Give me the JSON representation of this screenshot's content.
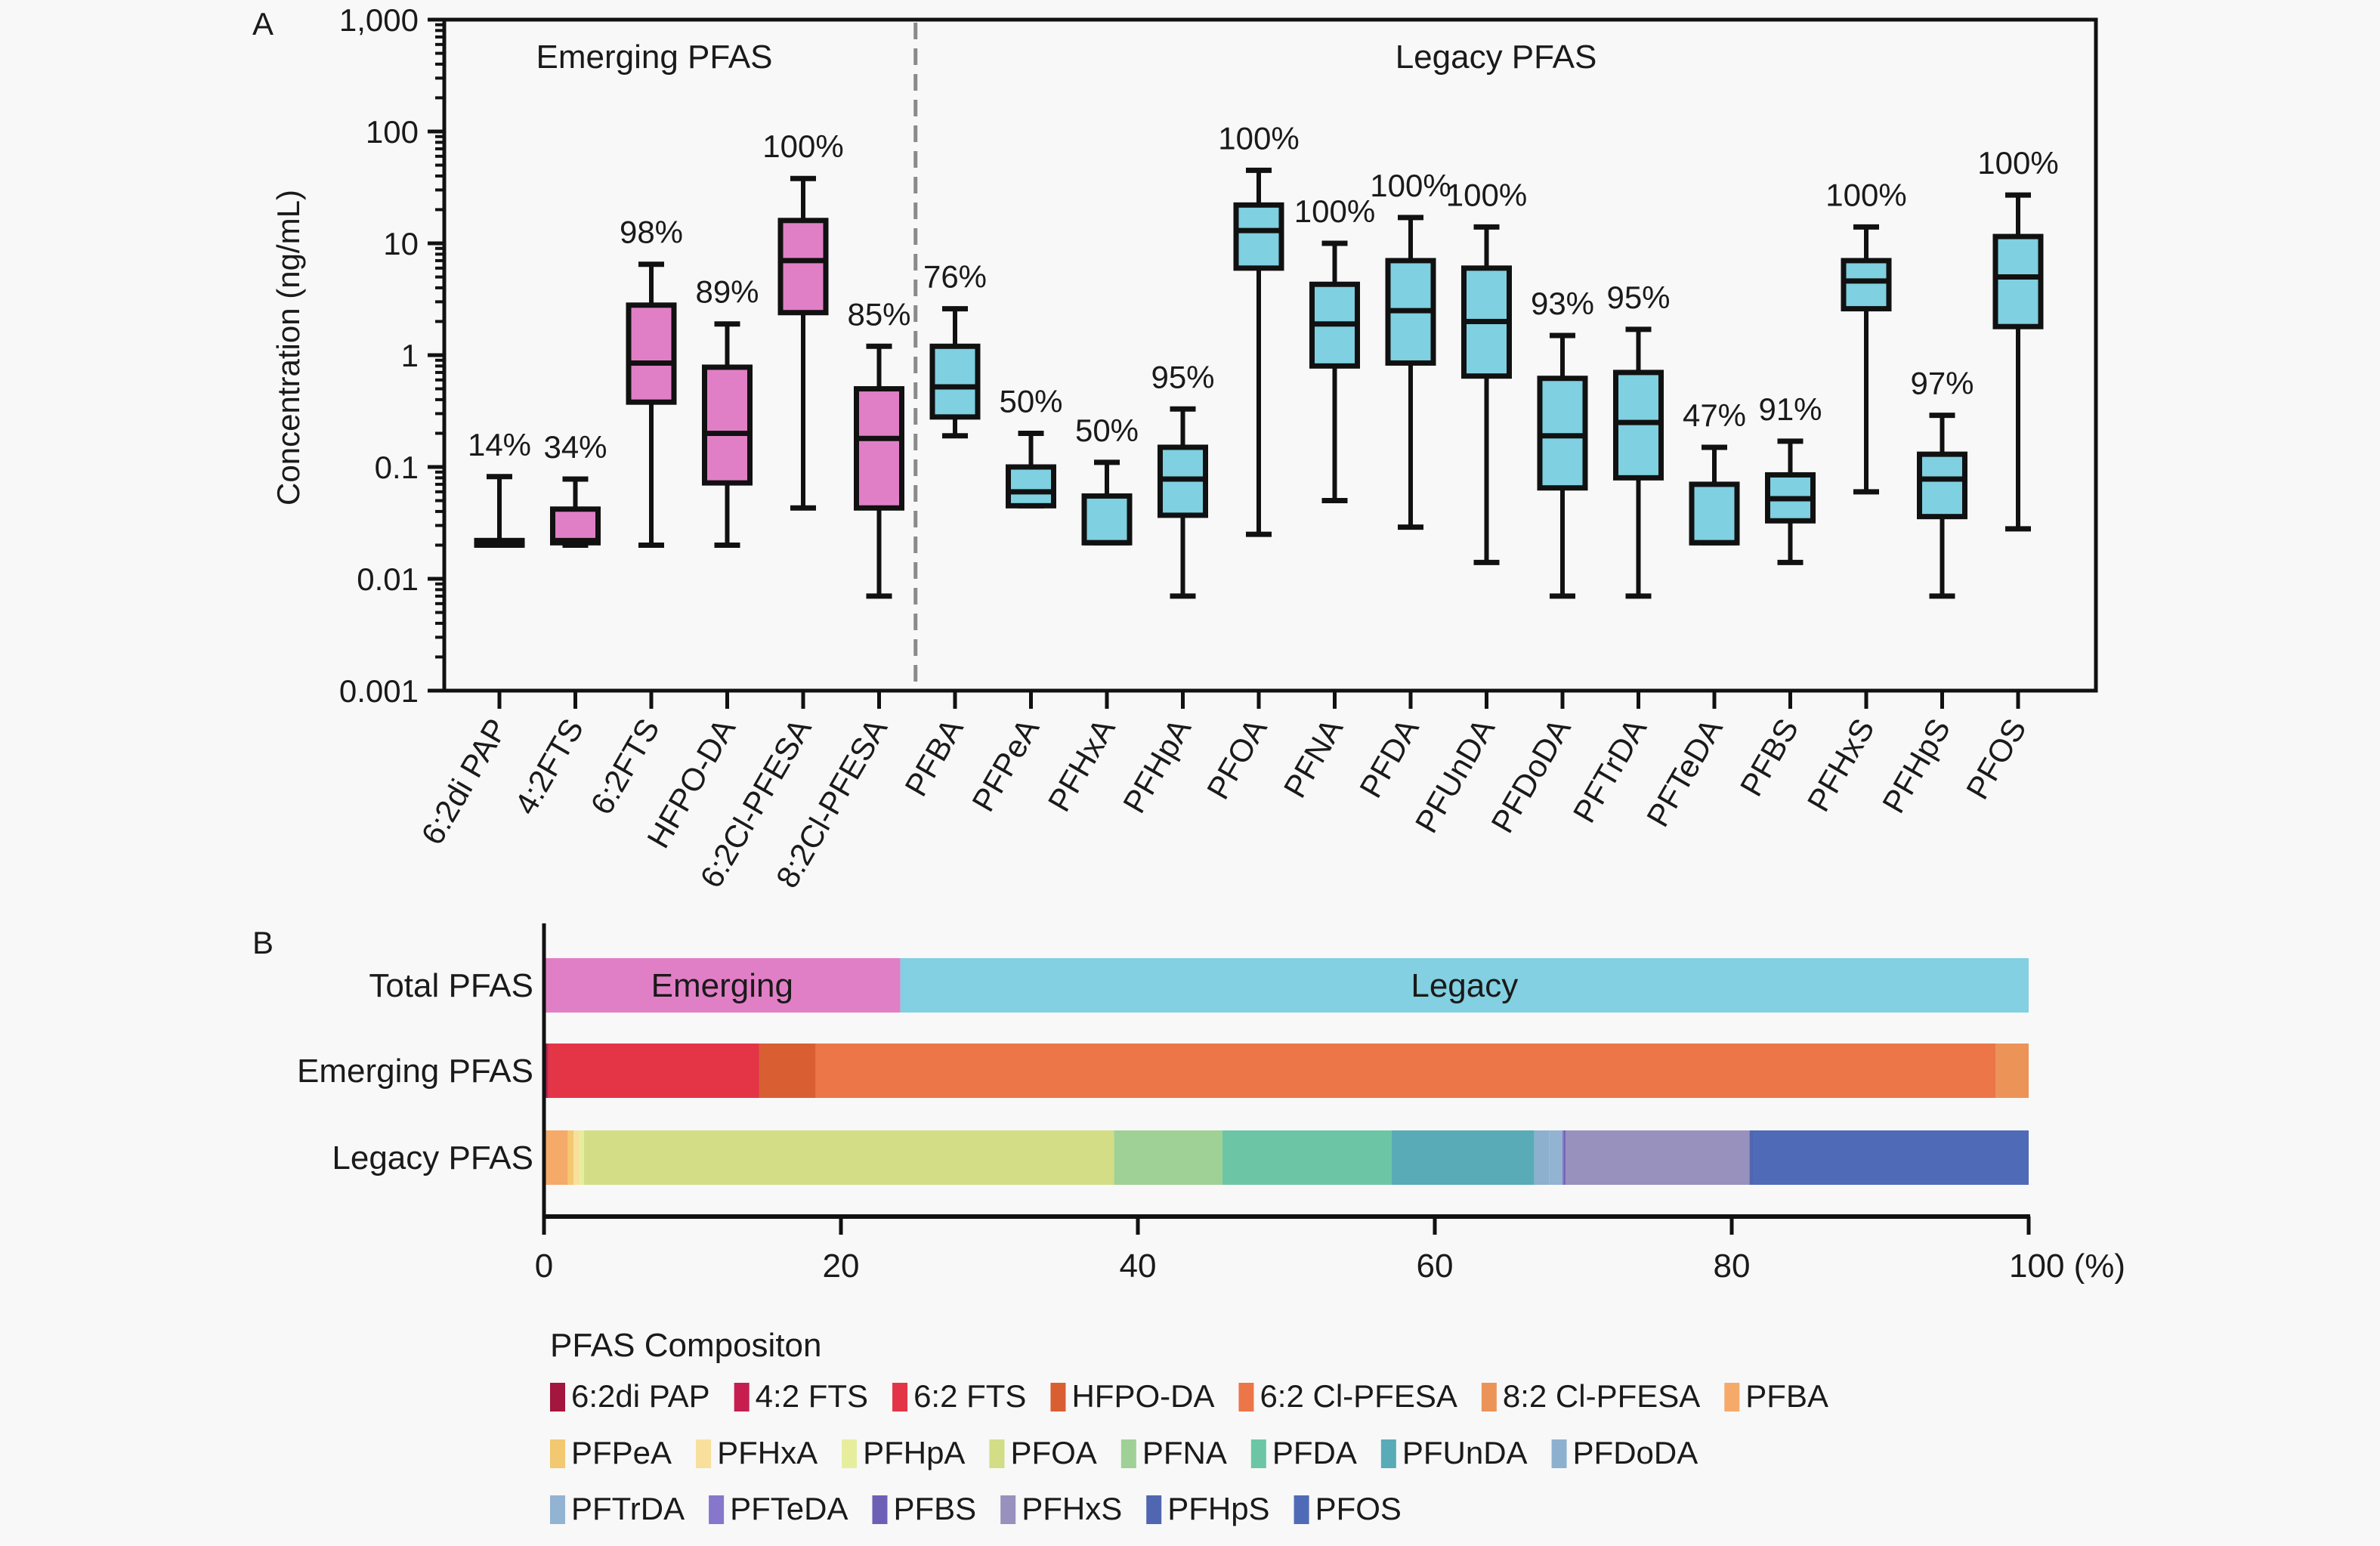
{
  "chart_data": [
    {
      "panel": "A",
      "type": "box",
      "ylabel": "Concentration (ng/mL)",
      "yscale": "log",
      "ylim": [
        0.001,
        1000
      ],
      "yticks": [
        {
          "value": 1000,
          "label": "1,000"
        },
        {
          "value": 100,
          "label": "100"
        },
        {
          "value": 10,
          "label": "10"
        },
        {
          "value": 1,
          "label": "1"
        },
        {
          "value": 0.1,
          "label": "0.1"
        },
        {
          "value": 0.01,
          "label": "0.01"
        },
        {
          "value": 0.001,
          "label": "0.001"
        }
      ],
      "groups": [
        {
          "label": "Emerging PFAS",
          "color": "#e17fc6",
          "count": 6
        },
        {
          "label": "Legacy PFAS",
          "color": "#7fd0e0",
          "count": 15
        }
      ],
      "series": [
        {
          "name": "6:2di PAP",
          "group": "Emerging PFAS",
          "detection": "14%",
          "min": 0.02,
          "q1": 0.02,
          "median": 0.02,
          "q3": 0.022,
          "max": 0.082
        },
        {
          "name": "4:2FTS",
          "group": "Emerging PFAS",
          "detection": "34%",
          "min": 0.02,
          "q1": 0.021,
          "median": 0.022,
          "q3": 0.042,
          "max": 0.078
        },
        {
          "name": "6:2FTS",
          "group": "Emerging PFAS",
          "detection": "98%",
          "min": 0.02,
          "q1": 0.38,
          "median": 0.85,
          "q3": 2.8,
          "max": 6.5
        },
        {
          "name": "HFPO-DA",
          "group": "Emerging PFAS",
          "detection": "89%",
          "min": 0.02,
          "q1": 0.072,
          "median": 0.2,
          "q3": 0.78,
          "max": 1.9
        },
        {
          "name": "6:2Cl-PFESA",
          "group": "Emerging PFAS",
          "detection": "100%",
          "min": 0.043,
          "q1": 2.4,
          "median": 7,
          "q3": 16,
          "max": 38
        },
        {
          "name": "8:2Cl-PFESA",
          "group": "Emerging PFAS",
          "detection": "85%",
          "min": 0.007,
          "q1": 0.043,
          "median": 0.18,
          "q3": 0.5,
          "max": 1.2
        },
        {
          "name": "PFBA",
          "group": "Legacy PFAS",
          "detection": "76%",
          "min": 0.19,
          "q1": 0.28,
          "median": 0.52,
          "q3": 1.2,
          "max": 2.6
        },
        {
          "name": "PFPeA",
          "group": "Legacy PFAS",
          "detection": "50%",
          "min": 0.045,
          "q1": 0.045,
          "median": 0.06,
          "q3": 0.1,
          "max": 0.2
        },
        {
          "name": "PFHxA",
          "group": "Legacy PFAS",
          "detection": "50%",
          "min": 0.021,
          "q1": 0.021,
          "median": 0.021,
          "q3": 0.055,
          "max": 0.11
        },
        {
          "name": "PFHpA",
          "group": "Legacy PFAS",
          "detection": "95%",
          "min": 0.007,
          "q1": 0.037,
          "median": 0.078,
          "q3": 0.15,
          "max": 0.33
        },
        {
          "name": "PFOA",
          "group": "Legacy PFAS",
          "detection": "100%",
          "min": 0.025,
          "q1": 6,
          "median": 13,
          "q3": 22,
          "max": 45
        },
        {
          "name": "PFNA",
          "group": "Legacy PFAS",
          "detection": "100%",
          "min": 0.05,
          "q1": 0.8,
          "median": 1.9,
          "q3": 4.3,
          "max": 10
        },
        {
          "name": "PFDA",
          "group": "Legacy PFAS",
          "detection": "100%",
          "min": 0.029,
          "q1": 0.85,
          "median": 2.5,
          "q3": 7,
          "max": 17
        },
        {
          "name": "PFUnDA",
          "group": "Legacy PFAS",
          "detection": "100%",
          "min": 0.014,
          "q1": 0.65,
          "median": 2,
          "q3": 6,
          "max": 14
        },
        {
          "name": "PFDoDA",
          "group": "Legacy PFAS",
          "detection": "93%",
          "min": 0.007,
          "q1": 0.065,
          "median": 0.19,
          "q3": 0.62,
          "max": 1.5
        },
        {
          "name": "PFTrDA",
          "group": "Legacy PFAS",
          "detection": "95%",
          "min": 0.007,
          "q1": 0.08,
          "median": 0.25,
          "q3": 0.7,
          "max": 1.7
        },
        {
          "name": "PFTeDA",
          "group": "Legacy PFAS",
          "detection": "47%",
          "min": 0.021,
          "q1": 0.021,
          "median": 0.021,
          "q3": 0.07,
          "max": 0.15
        },
        {
          "name": "PFBS",
          "group": "Legacy PFAS",
          "detection": "91%",
          "min": 0.014,
          "q1": 0.033,
          "median": 0.052,
          "q3": 0.085,
          "max": 0.17
        },
        {
          "name": "PFHxS",
          "group": "Legacy PFAS",
          "detection": "100%",
          "min": 0.06,
          "q1": 2.6,
          "median": 4.6,
          "q3": 7,
          "max": 14
        },
        {
          "name": "PFHpS",
          "group": "Legacy PFAS",
          "detection": "97%",
          "min": 0.007,
          "q1": 0.036,
          "median": 0.078,
          "q3": 0.13,
          "max": 0.29
        },
        {
          "name": "PFOS",
          "group": "Legacy PFAS",
          "detection": "100%",
          "min": 0.028,
          "q1": 1.8,
          "median": 5,
          "q3": 11.5,
          "max": 27
        }
      ]
    },
    {
      "panel": "B",
      "type": "bar",
      "orientation": "horizontal",
      "stacked": true,
      "xlabel": "(%)",
      "xlim": [
        0,
        100
      ],
      "xticks": [
        "0",
        "20",
        "40",
        "60",
        "80",
        "100 (%)"
      ],
      "categories": [
        "Total PFAS",
        "Emerging PFAS",
        "Legacy PFAS"
      ],
      "rows": [
        {
          "category": "Total PFAS",
          "segments": [
            {
              "name": "Emerging",
              "value": 24.0,
              "color": "#e17fc6",
              "label": "Emerging"
            },
            {
              "name": "Legacy",
              "value": 76.0,
              "color": "#82d0e1",
              "label": "Legacy"
            }
          ]
        },
        {
          "category": "Emerging PFAS",
          "segments": [
            {
              "name": "6:2di PAP",
              "value": 0.2,
              "color": "#a3163e"
            },
            {
              "name": "4:2 FTS",
              "value": 0.1,
              "color": "#c61f4f"
            },
            {
              "name": "6:2 FTS",
              "value": 14.2,
              "color": "#e33546"
            },
            {
              "name": "HFPO-DA",
              "value": 3.8,
              "color": "#d95f33"
            },
            {
              "name": "6:2 Cl-PFESA",
              "value": 79.5,
              "color": "#ec7648"
            },
            {
              "name": "8:2 Cl-PFESA",
              "value": 2.2,
              "color": "#ec9458"
            }
          ]
        },
        {
          "category": "Legacy PFAS",
          "segments": [
            {
              "name": "PFBA",
              "value": 1.6,
              "color": "#f5aa6a"
            },
            {
              "name": "PFPeA",
              "value": 0.4,
              "color": "#f2c870"
            },
            {
              "name": "PFHxA",
              "value": 0.4,
              "color": "#f8e09c"
            },
            {
              "name": "PFHpA",
              "value": 0.3,
              "color": "#e6ee9e"
            },
            {
              "name": "PFOA",
              "value": 35.7,
              "color": "#d2dd86"
            },
            {
              "name": "PFNA",
              "value": 7.3,
              "color": "#9fd196"
            },
            {
              "name": "PFDA",
              "value": 11.4,
              "color": "#6cc6a6"
            },
            {
              "name": "PFUnDA",
              "value": 9.6,
              "color": "#59abb8"
            },
            {
              "name": "PFDoDA",
              "value": 1.0,
              "color": "#8db0cf"
            },
            {
              "name": "PFTrDA",
              "value": 0.9,
              "color": "#93b3d3"
            },
            {
              "name": "PFTeDA",
              "value": 0.1,
              "color": "#8677cc"
            },
            {
              "name": "PFBS",
              "value": 0.1,
              "color": "#6e5fb6"
            },
            {
              "name": "PFHxS",
              "value": 12.4,
              "color": "#9891bd"
            },
            {
              "name": "PFHpS",
              "value": 0.3,
              "color": "#5066b0"
            },
            {
              "name": "PFOS",
              "value": 18.5,
              "color": "#4f6bb8"
            }
          ]
        }
      ],
      "legend": {
        "title": "PFAS Compositon",
        "placement": "bottom",
        "items": [
          {
            "name": "6:2di PAP",
            "color": "#a3163e"
          },
          {
            "name": "4:2 FTS",
            "color": "#c61f4f"
          },
          {
            "name": "6:2 FTS",
            "color": "#e33546"
          },
          {
            "name": "HFPO-DA",
            "color": "#d95f33"
          },
          {
            "name": "6:2 Cl-PFESA",
            "color": "#ec7648"
          },
          {
            "name": "8:2 Cl-PFESA",
            "color": "#ec9458"
          },
          {
            "name": "PFBA",
            "color": "#f5aa6a"
          },
          {
            "name": "PFPeA",
            "color": "#f2c870"
          },
          {
            "name": "PFHxA",
            "color": "#f8e09c"
          },
          {
            "name": "PFHpA",
            "color": "#e6ee9e"
          },
          {
            "name": "PFOA",
            "color": "#d2dd86"
          },
          {
            "name": "PFNA",
            "color": "#9fd196"
          },
          {
            "name": "PFDA",
            "color": "#6cc6a6"
          },
          {
            "name": "PFUnDA",
            "color": "#59abb8"
          },
          {
            "name": "PFDoDA",
            "color": "#8db0cf"
          },
          {
            "name": "PFTrDA",
            "color": "#93b3d3"
          },
          {
            "name": "PFTeDA",
            "color": "#8677cc"
          },
          {
            "name": "PFBS",
            "color": "#6e5fb6"
          },
          {
            "name": "PFHxS",
            "color": "#9891bd"
          },
          {
            "name": "PFHpS",
            "color": "#5066b0"
          },
          {
            "name": "PFOS",
            "color": "#4f6bb8"
          }
        ]
      }
    }
  ],
  "labels": {
    "panel_a": "A",
    "panel_b": "B"
  }
}
